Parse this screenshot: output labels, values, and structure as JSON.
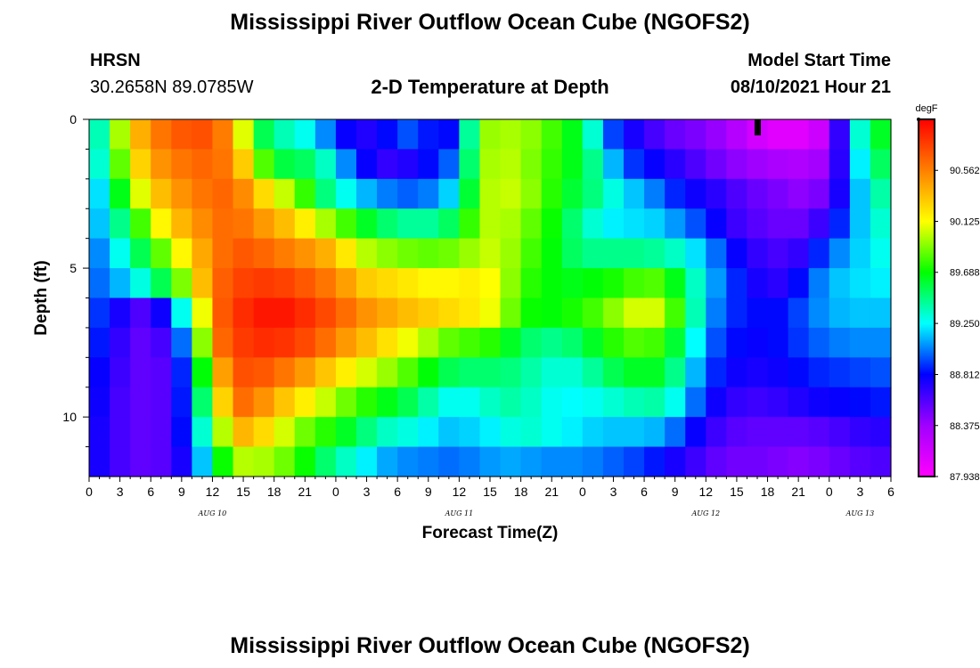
{
  "chart_data": {
    "type": "heatmap",
    "title": "Mississippi River Outflow Ocean Cube (NGOFS2)",
    "footer_title": "Mississippi River Outflow Ocean Cube (NGOFS2)",
    "station_name": "HRSN",
    "station_coords": "30.2658N  89.0785W",
    "subtitle": "2-D Temperature at Depth",
    "model_start_label": "Model Start Time",
    "model_start_value": "08/10/2021 Hour 21",
    "xlabel": "Forecast Time(Z)",
    "ylabel": "Depth (ft)",
    "x_range_hours": [
      0,
      78
    ],
    "x_tick_labels": [
      "0",
      "3",
      "6",
      "9",
      "12",
      "15",
      "18",
      "21",
      "0",
      "3",
      "6",
      "9",
      "12",
      "15",
      "18",
      "21",
      "0",
      "3",
      "6",
      "9",
      "12",
      "15",
      "18",
      "21",
      "0",
      "3",
      "6"
    ],
    "date_labels": [
      {
        "text": "AUG 10",
        "hour": 12
      },
      {
        "text": "AUG 11",
        "hour": 36
      },
      {
        "text": "AUG 12",
        "hour": 60
      },
      {
        "text": "AUG 13",
        "hour": 75
      }
    ],
    "y_range_ft": [
      0,
      12
    ],
    "y_tick_labels": [
      "0",
      "5",
      "10"
    ],
    "y_tick_values": [
      0,
      5,
      10
    ],
    "colorbar": {
      "unit": "degF",
      "min": 87.938,
      "max": 90.999,
      "tick_labels": [
        "90.562",
        "90.125",
        "89.688",
        "89.250",
        "88.812",
        "88.375",
        "87.938"
      ],
      "tick_values": [
        90.562,
        90.125,
        89.688,
        89.25,
        88.812,
        88.375,
        87.938
      ],
      "colors": [
        "#ff00ff",
        "#a000ff",
        "#0000ff",
        "#00ffff",
        "#00ff00",
        "#ffff00",
        "#ff8000",
        "#ff0000"
      ]
    },
    "current_time_marker_hour": 65,
    "depth_rows_ft": [
      0.5,
      1.5,
      2.5,
      3.5,
      4.5,
      5.5,
      6.5,
      7.5,
      8.5,
      9.5,
      10.5,
      11.5
    ],
    "grid_hours": [
      0,
      2,
      4,
      6,
      8,
      10,
      12,
      14,
      16,
      18,
      20,
      22,
      24,
      26,
      28,
      30,
      32,
      34,
      36,
      38,
      40,
      42,
      44,
      46,
      48,
      50,
      52,
      54,
      56,
      58,
      60,
      62,
      64,
      66,
      68,
      70,
      72,
      74,
      76,
      78
    ],
    "keyframes": [
      {
        "hour": 0,
        "temps": [
          89.05,
          89.05,
          89.0,
          89.0,
          88.95,
          88.95,
          88.9,
          88.9,
          88.85,
          88.85,
          88.8,
          88.8
        ]
      },
      {
        "hour": 2,
        "temps": [
          89.7,
          89.6,
          89.4,
          89.3,
          89.15,
          89.05,
          88.9,
          88.8,
          88.75,
          88.7,
          88.7,
          88.7
        ]
      },
      {
        "hour": 4,
        "temps": [
          90.25,
          90.1,
          89.9,
          89.6,
          89.4,
          89.2,
          88.6,
          88.55,
          88.55,
          88.55,
          88.55,
          88.55
        ]
      },
      {
        "hour": 6,
        "temps": [
          90.55,
          90.45,
          90.25,
          90.0,
          89.7,
          89.4,
          88.6,
          88.55,
          88.55,
          88.55,
          88.55,
          88.55
        ]
      },
      {
        "hour": 8,
        "temps": [
          90.65,
          90.55,
          90.45,
          90.3,
          90.0,
          89.7,
          88.95,
          88.7,
          88.6,
          88.6,
          88.6,
          88.6
        ]
      },
      {
        "hour": 10,
        "temps": [
          90.75,
          90.65,
          90.55,
          90.45,
          90.3,
          90.1,
          89.6,
          89.3,
          89.15,
          89.1,
          89.05,
          88.9
        ]
      },
      {
        "hour": 12,
        "temps": [
          90.7,
          90.65,
          90.65,
          90.6,
          90.55,
          90.6,
          90.6,
          90.55,
          90.2,
          89.9,
          89.6,
          89.4
        ]
      },
      {
        "hour": 14,
        "temps": [
          90.45,
          90.55,
          90.65,
          90.65,
          90.7,
          90.75,
          90.8,
          90.75,
          90.7,
          90.65,
          90.4,
          90.0
        ]
      },
      {
        "hour": 16,
        "temps": [
          89.7,
          90.05,
          90.4,
          90.55,
          90.7,
          90.8,
          90.9,
          90.85,
          90.75,
          90.6,
          90.35,
          90.0
        ]
      },
      {
        "hour": 18,
        "temps": [
          89.4,
          89.6,
          90.1,
          90.4,
          90.6,
          90.8,
          90.95,
          90.85,
          90.65,
          90.4,
          90.15,
          89.95
        ]
      },
      {
        "hour": 20,
        "temps": [
          89.35,
          89.55,
          89.95,
          90.3,
          90.55,
          90.75,
          90.9,
          90.8,
          90.55,
          90.25,
          89.95,
          89.8
        ]
      },
      {
        "hour": 22,
        "temps": [
          89.2,
          89.5,
          89.6,
          90.05,
          90.45,
          90.65,
          90.8,
          90.7,
          90.4,
          90.1,
          89.8,
          89.6
        ]
      },
      {
        "hour": 24,
        "temps": [
          88.9,
          89.2,
          89.35,
          89.9,
          90.35,
          90.55,
          90.7,
          90.55,
          90.25,
          89.95,
          89.7,
          89.4
        ]
      },
      {
        "hour": 26,
        "temps": [
          88.7,
          88.9,
          89.2,
          89.7,
          90.05,
          90.35,
          90.55,
          90.4,
          90.1,
          89.8,
          89.55,
          89.3
        ]
      },
      {
        "hour": 28,
        "temps": [
          88.75,
          88.7,
          89.05,
          89.55,
          89.95,
          90.25,
          90.45,
          90.3,
          90.0,
          89.7,
          89.4,
          89.15
        ]
      },
      {
        "hour": 30,
        "temps": [
          88.9,
          88.65,
          89.0,
          89.45,
          89.9,
          90.25,
          90.4,
          90.15,
          89.9,
          89.6,
          89.3,
          89.05
        ]
      },
      {
        "hour": 32,
        "temps": [
          89.0,
          88.8,
          88.95,
          89.4,
          89.85,
          90.15,
          90.3,
          90.05,
          89.75,
          89.5,
          89.3,
          89.05
        ]
      },
      {
        "hour": 34,
        "temps": [
          88.7,
          88.85,
          89.1,
          89.45,
          89.85,
          90.15,
          90.3,
          89.9,
          89.6,
          89.3,
          89.15,
          89.0
        ]
      },
      {
        "hour": 36,
        "temps": [
          88.95,
          89.1,
          89.25,
          89.6,
          89.9,
          90.15,
          90.2,
          89.8,
          89.5,
          89.25,
          89.15,
          89.0
        ]
      },
      {
        "hour": 38,
        "temps": [
          89.9,
          89.9,
          89.95,
          89.95,
          90.0,
          90.2,
          90.2,
          89.8,
          89.5,
          89.3,
          89.2,
          89.05
        ]
      },
      {
        "hour": 40,
        "temps": [
          90.0,
          90.05,
          90.05,
          90.05,
          90.05,
          90.05,
          90.0,
          89.7,
          89.5,
          89.4,
          89.25,
          89.1
        ]
      },
      {
        "hour": 42,
        "temps": [
          89.95,
          89.95,
          90.0,
          89.9,
          89.85,
          89.8,
          89.75,
          89.55,
          89.45,
          89.4,
          89.35,
          89.1
        ]
      },
      {
        "hour": 44,
        "temps": [
          89.9,
          89.85,
          89.85,
          89.8,
          89.75,
          89.7,
          89.65,
          89.45,
          89.35,
          89.3,
          89.3,
          89.05
        ]
      },
      {
        "hour": 46,
        "temps": [
          89.7,
          89.7,
          89.65,
          89.6,
          89.6,
          89.65,
          89.7,
          89.45,
          89.3,
          89.25,
          89.25,
          89.05
        ]
      },
      {
        "hour": 48,
        "temps": [
          89.6,
          89.6,
          89.55,
          89.4,
          89.45,
          89.65,
          89.75,
          89.55,
          89.35,
          89.25,
          89.2,
          89.05
        ]
      },
      {
        "hour": 50,
        "temps": [
          89.05,
          89.3,
          89.4,
          89.25,
          89.45,
          89.7,
          89.85,
          89.7,
          89.5,
          89.3,
          89.15,
          89.0
        ]
      },
      {
        "hour": 52,
        "temps": [
          88.8,
          88.95,
          89.2,
          89.2,
          89.45,
          89.75,
          90.0,
          89.8,
          89.6,
          89.35,
          89.15,
          88.95
        ]
      },
      {
        "hour": 54,
        "temps": [
          88.7,
          88.85,
          89.1,
          89.2,
          89.45,
          89.85,
          90.1,
          89.85,
          89.65,
          89.4,
          89.15,
          88.9
        ]
      },
      {
        "hour": 56,
        "temps": [
          88.55,
          88.75,
          88.95,
          89.15,
          89.4,
          89.8,
          90.0,
          89.75,
          89.6,
          89.4,
          89.1,
          88.8
        ]
      },
      {
        "hour": 58,
        "temps": [
          88.5,
          88.65,
          88.8,
          89.0,
          89.3,
          89.5,
          89.6,
          89.45,
          89.3,
          89.15,
          88.9,
          88.7
        ]
      },
      {
        "hour": 60,
        "temps": [
          88.45,
          88.55,
          88.75,
          88.9,
          89.1,
          89.2,
          89.15,
          89.05,
          88.95,
          88.85,
          88.7,
          88.6
        ]
      },
      {
        "hour": 62,
        "temps": [
          88.35,
          88.45,
          88.65,
          88.7,
          88.9,
          88.95,
          88.9,
          88.85,
          88.8,
          88.7,
          88.6,
          88.5
        ]
      },
      {
        "hour": 64,
        "temps": [
          88.2,
          88.4,
          88.55,
          88.6,
          88.7,
          88.8,
          88.85,
          88.8,
          88.75,
          88.65,
          88.55,
          88.5
        ]
      },
      {
        "hour": 66,
        "temps": [
          88.1,
          88.35,
          88.5,
          88.55,
          88.65,
          88.7,
          88.8,
          88.8,
          88.75,
          88.65,
          88.55,
          88.5
        ]
      },
      {
        "hour": 68,
        "temps": [
          88.05,
          88.3,
          88.45,
          88.5,
          88.6,
          88.7,
          88.85,
          88.85,
          88.8,
          88.7,
          88.55,
          88.45
        ]
      },
      {
        "hour": 70,
        "temps": [
          88.1,
          88.3,
          88.4,
          88.55,
          88.75,
          88.95,
          89.0,
          88.95,
          88.85,
          88.75,
          88.55,
          88.45
        ]
      },
      {
        "hour": 72,
        "temps": [
          88.25,
          88.4,
          88.55,
          88.75,
          89.0,
          89.1,
          89.1,
          89.0,
          88.9,
          88.8,
          88.6,
          88.5
        ]
      },
      {
        "hour": 74,
        "temps": [
          89.1,
          89.0,
          88.95,
          89.0,
          89.1,
          89.2,
          89.15,
          89.05,
          88.9,
          88.8,
          88.65,
          88.55
        ]
      },
      {
        "hour": 76,
        "temps": [
          89.55,
          89.45,
          89.35,
          89.3,
          89.25,
          89.2,
          89.15,
          89.05,
          88.95,
          88.85,
          88.7,
          88.6
        ]
      },
      {
        "hour": 78,
        "temps": [
          89.7,
          89.6,
          89.45,
          89.35,
          89.3,
          89.25,
          89.15,
          89.05,
          88.95,
          88.85,
          88.7,
          88.6
        ]
      }
    ]
  }
}
